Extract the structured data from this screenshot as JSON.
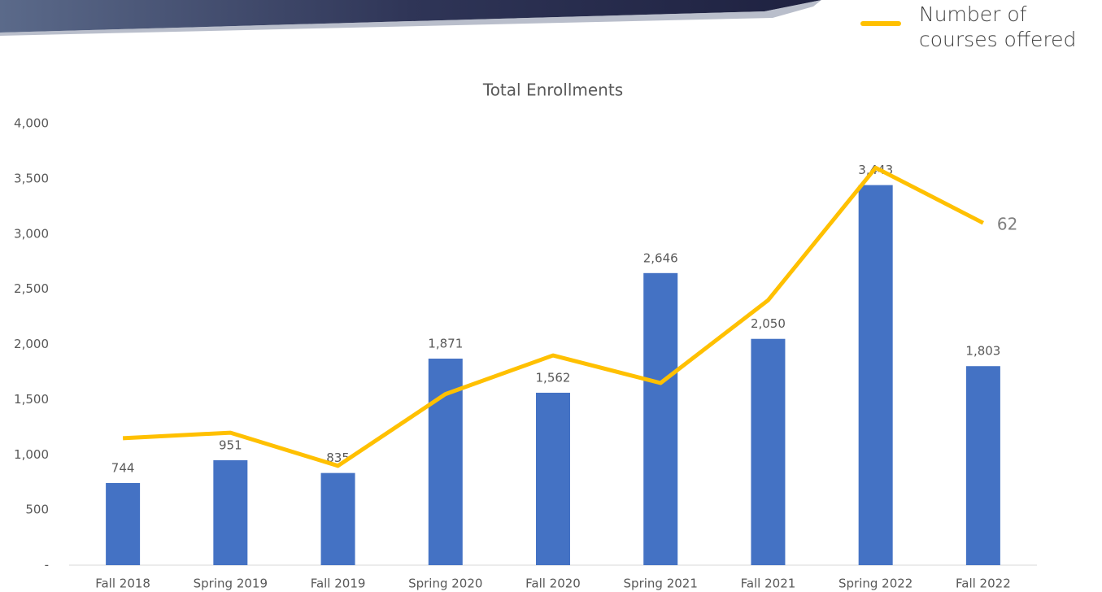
{
  "chart_data": {
    "type": "bar",
    "title": "Total Enrollments",
    "categories": [
      "Fall 2018",
      "Spring 2019",
      "Fall 2019",
      "Spring 2020",
      "Fall 2020",
      "Spring 2021",
      "Fall 2021",
      "Spring 2022",
      "Fall 2022"
    ],
    "ylim": [
      0,
      4000
    ],
    "yticks": [
      {
        "value": 0,
        "label": "-"
      },
      500,
      {
        "value": 1000,
        "label": "1,000"
      },
      {
        "value": 1500,
        "label": "1,500"
      },
      {
        "value": 2000,
        "label": "2,000"
      },
      {
        "value": 2500,
        "label": "2,500"
      },
      {
        "value": 3000,
        "label": "3,000"
      },
      {
        "value": 3500,
        "label": "3,500"
      },
      {
        "value": 4000,
        "label": "4,000"
      }
    ],
    "y2lim": [
      0,
      80
    ],
    "grid": false,
    "legend": "top-right",
    "series": [
      {
        "name": "Total Enrollments",
        "type": "bar",
        "color": "#4472c4",
        "values": [
          744,
          951,
          835,
          1871,
          1562,
          2646,
          2050,
          3443,
          1803
        ],
        "value_labels": [
          "744",
          "951",
          "835",
          "1,871",
          "1,562",
          "2,646",
          "2,050",
          "3,443",
          "1,803"
        ]
      },
      {
        "name": "Number of courses offered",
        "type": "line",
        "axis": "y2",
        "color": "#ffc000",
        "values": [
          23,
          24,
          18,
          31,
          38,
          33,
          48,
          72,
          62
        ],
        "value_labels": [
          null,
          null,
          null,
          null,
          null,
          null,
          null,
          null,
          "62"
        ]
      }
    ]
  }
}
